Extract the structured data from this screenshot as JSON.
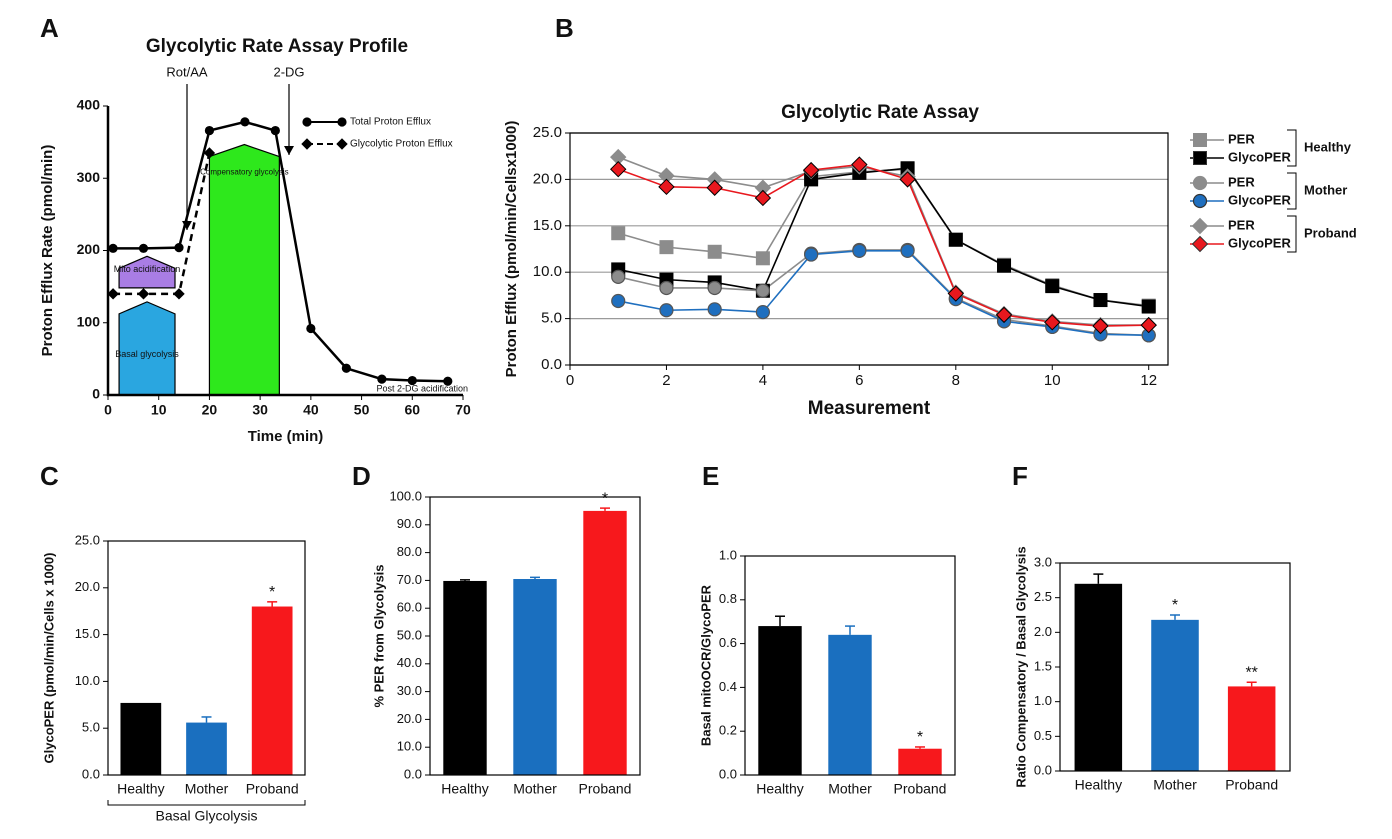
{
  "chart_data": [
    {
      "panel_label": "A",
      "type": "line",
      "title": "Glycolytic Rate Assay Profile",
      "xlabel": "Time (min)",
      "ylabel": "Proton Efflux Rate (pmol/min)",
      "xlim": [
        0,
        70
      ],
      "xticks": [
        0,
        10,
        20,
        30,
        40,
        50,
        60,
        70
      ],
      "ylim": [
        0,
        400
      ],
      "yticks": [
        0,
        100,
        200,
        300,
        400
      ],
      "series": [
        {
          "name": "Total Proton Efflux",
          "color": "#000000",
          "marker": "circle",
          "dashed": false,
          "x": [
            1,
            7,
            14,
            20,
            27,
            33,
            40,
            47,
            54,
            60,
            67
          ],
          "values": [
            203,
            203,
            204,
            366,
            378,
            366,
            92,
            37,
            22,
            20,
            19
          ]
        },
        {
          "name": "Glycolytic Proton Efflux",
          "color": "#000000",
          "marker": "diamond",
          "dashed": true,
          "x": [
            1,
            7,
            14,
            20
          ],
          "values": [
            140,
            140,
            140,
            335
          ]
        }
      ],
      "annotations": [
        "Rot/AA",
        "2-DG",
        "Mito acidification",
        "Basal glycolysis",
        "Compensatory glycolysis",
        "Post 2-DG acidification"
      ]
    },
    {
      "panel_label": "B",
      "type": "line",
      "title": "Glycolytic Rate Assay",
      "xlabel": "Measurement",
      "ylabel": "Proton Efflux (pmol/min/Cellsx1000)",
      "xlim": [
        0,
        12.4
      ],
      "xticks": [
        0,
        2,
        4,
        6,
        8,
        10,
        12
      ],
      "ylim": [
        0,
        25
      ],
      "yticks": [
        {
          "value": 0,
          "label": "0.0"
        },
        {
          "value": 5,
          "label": "5.0"
        },
        {
          "value": 10,
          "label": "10.0"
        },
        {
          "value": 15,
          "label": "15.0"
        },
        {
          "value": 20,
          "label": "20.0"
        },
        {
          "value": 25,
          "label": "25.0"
        }
      ],
      "grid": true,
      "x": [
        1,
        2,
        3,
        4,
        5,
        6,
        7,
        8,
        9,
        10,
        11,
        12
      ],
      "legend_groups": [
        "Healthy",
        "Mother",
        "Proband"
      ],
      "series": [
        {
          "name": "PER",
          "color": "#8c8c8c",
          "marker": "square",
          "values": [
            14.2,
            12.7,
            12.2,
            11.5,
            20.3,
            20.8,
            21.1,
            13.5,
            10.8,
            8.6,
            7.0,
            6.4
          ]
        },
        {
          "name": "GlycoPER",
          "color": "#000000",
          "marker": "square",
          "values": [
            10.3,
            9.2,
            8.9,
            8.0,
            20.0,
            20.7,
            21.2,
            13.5,
            10.7,
            8.5,
            7.0,
            6.3
          ]
        },
        {
          "name": "PER",
          "color": "#8c8c8c",
          "marker": "circle",
          "values": [
            9.5,
            8.3,
            8.3,
            8.0,
            12.0,
            12.4,
            12.4,
            7.2,
            4.9,
            4.2,
            3.4,
            3.2
          ]
        },
        {
          "name": "GlycoPER",
          "color": "#1f6fbf",
          "marker": "circle",
          "values": [
            6.9,
            5.9,
            6.0,
            5.7,
            11.9,
            12.3,
            12.3,
            7.1,
            4.7,
            4.1,
            3.3,
            3.2
          ]
        },
        {
          "name": "PER",
          "color": "#8c8c8c",
          "marker": "diamond",
          "values": [
            22.4,
            20.4,
            20.0,
            19.1,
            20.9,
            21.4,
            20.3,
            7.8,
            5.5,
            4.7,
            4.3,
            4.3
          ]
        },
        {
          "name": "GlycoPER",
          "color": "#e8181e",
          "marker": "diamond",
          "values": [
            21.1,
            19.2,
            19.1,
            18.0,
            21.0,
            21.6,
            20.0,
            7.7,
            5.4,
            4.6,
            4.2,
            4.3
          ]
        }
      ]
    },
    {
      "panel_label": "C",
      "type": "bar",
      "ylabel": "GlycoPER (pmol/min/Cells x 1000)",
      "categories": [
        "Healthy",
        "Mother",
        "Proband"
      ],
      "values": [
        7.7,
        5.6,
        18.0
      ],
      "errors": [
        0,
        0.6,
        0.5
      ],
      "colors": [
        "#000000",
        "#1a6fbf",
        "#f7181c"
      ],
      "stars": [
        null,
        null,
        "*"
      ],
      "ylim": [
        0,
        25
      ],
      "yticks": [
        {
          "value": 0,
          "label": "0.0"
        },
        {
          "value": 5,
          "label": "5.0"
        },
        {
          "value": 10,
          "label": "10.0"
        },
        {
          "value": 15,
          "label": "15.0"
        },
        {
          "value": 20,
          "label": "20.0"
        },
        {
          "value": 25,
          "label": "25.0"
        }
      ],
      "bracket_label": "Basal Glycolysis"
    },
    {
      "panel_label": "D",
      "type": "bar",
      "ylabel": "% PER from Glycolysis",
      "categories": [
        "Healthy",
        "Mother",
        "Proband"
      ],
      "values": [
        69.8,
        70.5,
        95.0
      ],
      "errors": [
        0.4,
        0.6,
        1.0
      ],
      "colors": [
        "#000000",
        "#1a6fbf",
        "#f7181c"
      ],
      "stars": [
        null,
        null,
        "*"
      ],
      "ylim": [
        0,
        100
      ],
      "yticks": [
        {
          "value": 0,
          "label": "0.0"
        },
        {
          "value": 10,
          "label": "10.0"
        },
        {
          "value": 20,
          "label": "20.0"
        },
        {
          "value": 30,
          "label": "30.0"
        },
        {
          "value": 40,
          "label": "40.0"
        },
        {
          "value": 50,
          "label": "50.0"
        },
        {
          "value": 60,
          "label": "60.0"
        },
        {
          "value": 70,
          "label": "70.0"
        },
        {
          "value": 80,
          "label": "80.0"
        },
        {
          "value": 90,
          "label": "90.0"
        },
        {
          "value": 100,
          "label": "100.0"
        }
      ]
    },
    {
      "panel_label": "E",
      "type": "bar",
      "ylabel": "Basal mitoOCR/GlycoPER",
      "categories": [
        "Healthy",
        "Mother",
        "Proband"
      ],
      "values": [
        0.68,
        0.64,
        0.12
      ],
      "errors": [
        0.045,
        0.04,
        0.008
      ],
      "colors": [
        "#000000",
        "#1a6fbf",
        "#f7181c"
      ],
      "stars": [
        null,
        null,
        "*"
      ],
      "ylim": [
        0,
        1
      ],
      "yticks": [
        {
          "value": 0,
          "label": "0.0"
        },
        0.2,
        0.4,
        0.6,
        0.8,
        {
          "value": 1,
          "label": "1.0"
        }
      ]
    },
    {
      "panel_label": "F",
      "type": "bar",
      "ylabel": "Ratio Compensatory / Basal Glycolysis",
      "categories": [
        "Healthy",
        "Mother",
        "Proband"
      ],
      "values": [
        2.7,
        2.18,
        1.22
      ],
      "errors": [
        0.14,
        0.07,
        0.06
      ],
      "colors": [
        "#000000",
        "#1a6fbf",
        "#f7181c"
      ],
      "stars": [
        null,
        "*",
        "**"
      ],
      "ylim": [
        0,
        3
      ],
      "yticks": [
        {
          "value": 0,
          "label": "0.0"
        },
        0.5,
        {
          "value": 1,
          "label": "1.0"
        },
        1.5,
        {
          "value": 2,
          "label": "2.0"
        },
        2.5,
        {
          "value": 3,
          "label": "3.0"
        }
      ]
    }
  ]
}
